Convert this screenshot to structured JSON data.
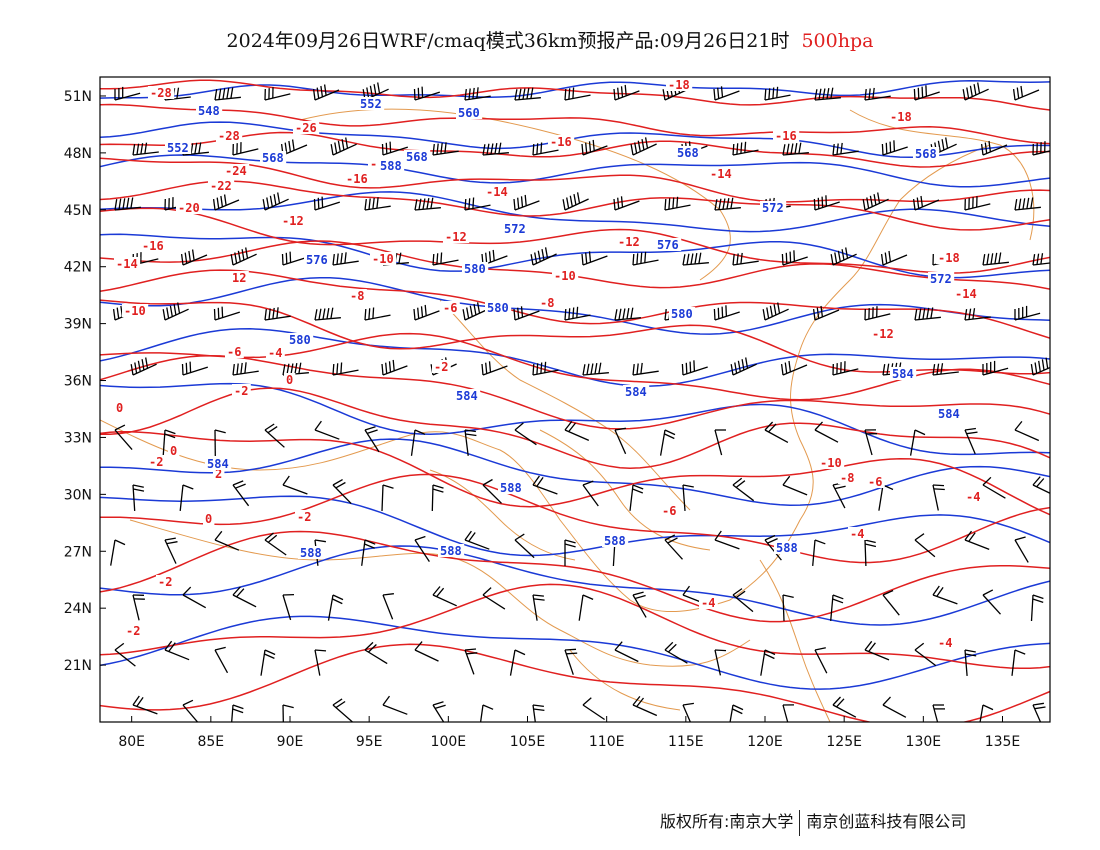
{
  "title": {
    "main": "2024年09月26日WRF/cmaq模式36km预报产品:09月26日21时",
    "level": "500hpa"
  },
  "colors": {
    "temperature": "#e02020",
    "height": "#1b3ad6",
    "border": "#e39a4f",
    "wind": "#000000"
  },
  "axes": {
    "lon_ticks": [
      "80E",
      "85E",
      "90E",
      "95E",
      "100E",
      "105E",
      "110E",
      "115E",
      "120E",
      "125E",
      "130E",
      "135E"
    ],
    "lat_ticks": [
      "51N",
      "48N",
      "45N",
      "42N",
      "39N",
      "36N",
      "33N",
      "30N",
      "27N",
      "24N",
      "21N"
    ],
    "lon_range": [
      78,
      138
    ],
    "lat_range": [
      18,
      52
    ]
  },
  "temperature_labels": [
    "-28",
    "-28",
    "-26",
    "-24",
    "-22",
    "-20",
    "-18",
    "-18",
    "-18",
    "-16",
    "-16",
    "-16",
    "-16",
    "-16",
    "-14",
    "-14",
    "-14",
    "-14",
    "-12",
    "-12",
    "-12",
    "-12",
    "-10",
    "-10",
    "-10",
    "-10",
    "-8",
    "-8",
    "-8",
    "-6",
    "-6",
    "-6",
    "-6",
    "-4",
    "-4",
    "-4",
    "-4",
    "-4",
    "-2",
    "-2",
    "-2",
    "-2",
    "-2",
    "-2",
    "0",
    "0",
    "0",
    "0",
    "2",
    "12"
  ],
  "height_labels": [
    "548",
    "552",
    "552",
    "560",
    "568",
    "568",
    "568",
    "568",
    "572",
    "572",
    "572",
    "576",
    "576",
    "580",
    "580",
    "580",
    "580",
    "584",
    "584",
    "584",
    "584",
    "584",
    "588",
    "588",
    "588",
    "588",
    "588",
    "588"
  ],
  "footer": {
    "left": "版权所有:南京大学",
    "right": "南京创蓝科技有限公司"
  }
}
